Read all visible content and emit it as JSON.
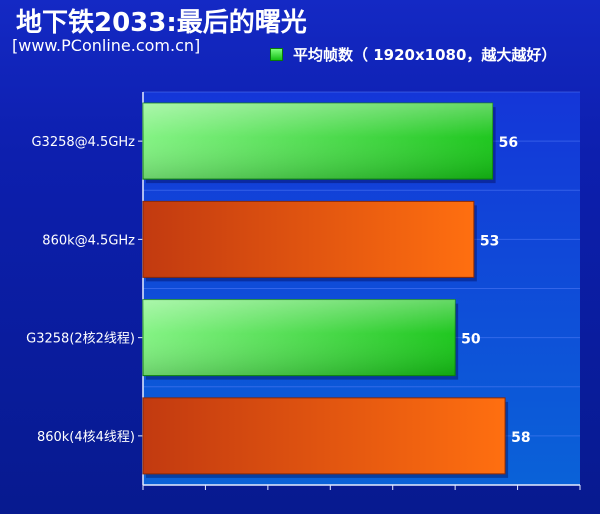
{
  "title": "地下铁2033:最后的曙光",
  "source": "[www.PConline.com.cn]",
  "legend": "平均帧数（ 1920x1080，越大越好）",
  "colors": {
    "green_start": "#7ef27e",
    "green_end": "#14c414",
    "red_start": "#c23a10",
    "red_end": "#ff6f10"
  },
  "chart_data": {
    "type": "bar",
    "orientation": "horizontal",
    "title": "地下铁2033:最后的曙光",
    "categories": [
      "G3258@4.5GHz",
      "860k@4.5GHz",
      "G3258(2核2线程)",
      "860k(4核4线程)"
    ],
    "values": [
      56,
      53,
      50,
      58
    ],
    "bar_colors": [
      "green",
      "red",
      "green",
      "red"
    ],
    "series": [
      {
        "name": "平均帧数（ 1920x1080，越大越好）",
        "values": [
          56,
          53,
          50,
          58
        ]
      }
    ],
    "xlim": [
      0,
      70
    ],
    "grid": true,
    "legend_position": "top-right"
  }
}
